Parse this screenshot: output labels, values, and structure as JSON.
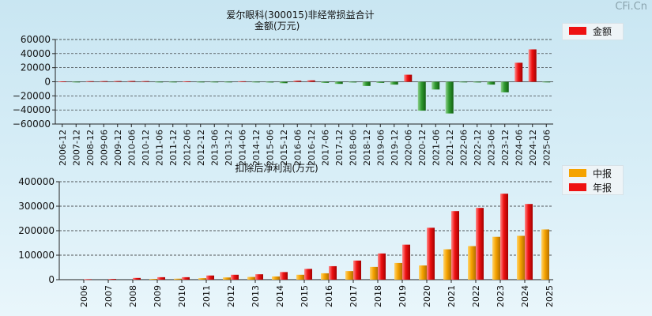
{
  "watermark": "CFi.Cn",
  "chart_data": [
    {
      "type": "bar",
      "title": "爱尔眼科(300015)非经常损益合计",
      "subtitle": "金额(万元)",
      "legend": [
        {
          "name": "金额",
          "color": "#ee1111"
        }
      ],
      "categories": [
        "2006-12",
        "2007-12",
        "2008-12",
        "2009-06",
        "2009-12",
        "2010-06",
        "2010-12",
        "2011-06",
        "2011-12",
        "2012-06",
        "2012-12",
        "2013-06",
        "2013-12",
        "2014-06",
        "2014-12",
        "2015-06",
        "2015-12",
        "2016-06",
        "2016-12",
        "2017-06",
        "2017-12",
        "2018-06",
        "2018-12",
        "2019-06",
        "2019-12",
        "2020-06",
        "2020-12",
        "2021-06",
        "2021-12",
        "2022-06",
        "2022-12",
        "2023-06",
        "2023-12",
        "2024-06",
        "2024-12",
        "2025-06"
      ],
      "values": [
        500,
        -600,
        800,
        900,
        1000,
        1100,
        900,
        -700,
        -900,
        600,
        -800,
        -800,
        -900,
        700,
        -800,
        -1000,
        -2000,
        1500,
        2000,
        -1500,
        -3000,
        -1000,
        -6000,
        -1500,
        -4000,
        10000,
        -41000,
        -11000,
        -45000,
        -500,
        -1000,
        -4000,
        -15000,
        27000,
        46000,
        -500
      ],
      "ylim": [
        -60000,
        60000
      ],
      "yticks": [
        60000,
        40000,
        20000,
        0,
        -20000,
        -40000,
        -60000
      ],
      "ytick_labels": [
        "60000",
        "40000",
        "20000",
        "0",
        "−20000",
        "−40000",
        "−60000"
      ]
    },
    {
      "type": "bar",
      "title": "扣除后净利润(万元)",
      "legend": [
        {
          "name": "中报",
          "color": "#f5a300"
        },
        {
          "name": "年报",
          "color": "#ee1111"
        }
      ],
      "categories": [
        "2006",
        "2007",
        "2008",
        "2009",
        "2010",
        "2011",
        "2012",
        "2013",
        "2014",
        "2015",
        "2016",
        "2017",
        "2018",
        "2019",
        "2020",
        "2021",
        "2022",
        "2023",
        "2024",
        "2025"
      ],
      "series": [
        {
          "name": "中报",
          "values": [
            null,
            null,
            null,
            3000,
            4000,
            6000,
            9000,
            11000,
            13000,
            20000,
            26000,
            35000,
            52000,
            68000,
            58000,
            124000,
            137000,
            175000,
            179000,
            205000
          ]
        },
        {
          "name": "年报",
          "values": [
            2000,
            3000,
            7000,
            10000,
            10000,
            17000,
            20000,
            22000,
            31000,
            44000,
            55000,
            78000,
            107000,
            143000,
            212000,
            280000,
            293000,
            351000,
            309000,
            null
          ]
        }
      ],
      "ylim": [
        0,
        400000
      ],
      "yticks": [
        400000,
        300000,
        200000,
        100000,
        0
      ],
      "ytick_labels": [
        "400000",
        "300000",
        "200000",
        "100000",
        "0"
      ]
    }
  ]
}
